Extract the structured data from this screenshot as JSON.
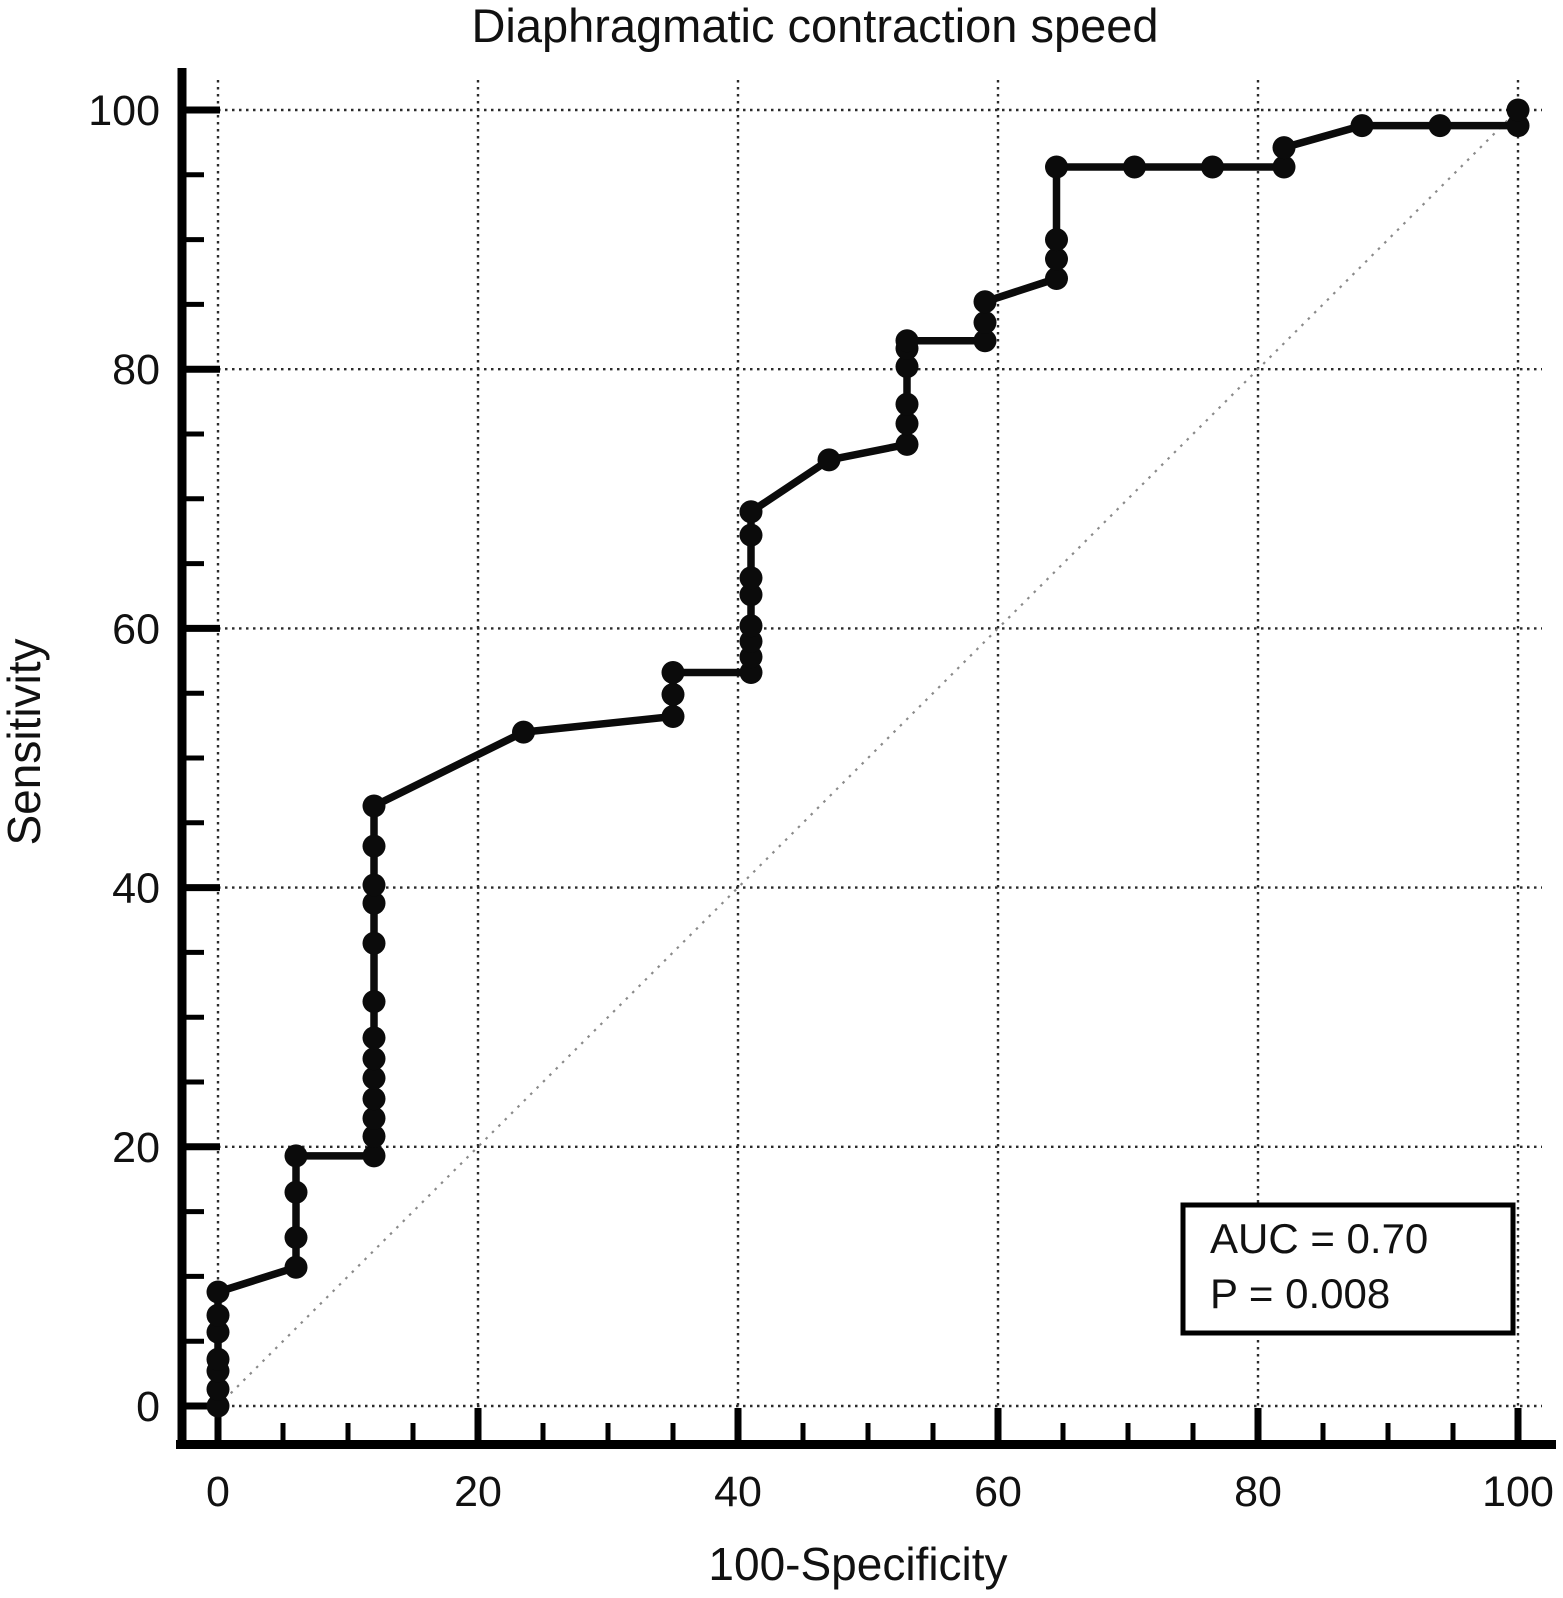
{
  "page": {
    "background": "#ffffff"
  },
  "chart_data": {
    "type": "line",
    "variant": "roc-curve",
    "title": "Diaphragmatic contraction speed",
    "xlabel": "100-Specificity",
    "ylabel": "Sensitivity",
    "xlim": [
      0,
      100
    ],
    "ylim": [
      0,
      100
    ],
    "x_major_ticks": [
      0,
      20,
      40,
      60,
      80,
      100
    ],
    "y_major_ticks": [
      0,
      20,
      40,
      60,
      80,
      100
    ],
    "minor_tick_step": 5,
    "grid": "dotted at major ticks",
    "legend": "none",
    "annotation": {
      "line1": "AUC = 0.70",
      "line2": "P = 0.008"
    },
    "reference_line": {
      "from": [
        0,
        0
      ],
      "to": [
        100,
        100
      ],
      "style": "dotted-gray-diagonal"
    },
    "series": [
      {
        "name": "ROC curve",
        "marker": "filled-circle",
        "points": [
          [
            0,
            0
          ],
          [
            0,
            1.3
          ],
          [
            0,
            2.7
          ],
          [
            0,
            3.6
          ],
          [
            0,
            5.7
          ],
          [
            0,
            7
          ],
          [
            0,
            8.8
          ],
          [
            6,
            10.7
          ],
          [
            6,
            13
          ],
          [
            6,
            16.5
          ],
          [
            6,
            19.3
          ],
          [
            12,
            19.3
          ],
          [
            12,
            20.8
          ],
          [
            12,
            22.2
          ],
          [
            12,
            23.7
          ],
          [
            12,
            25.3
          ],
          [
            12,
            26.8
          ],
          [
            12,
            28.4
          ],
          [
            12,
            31.2
          ],
          [
            12,
            35.7
          ],
          [
            12,
            38.8
          ],
          [
            12,
            40.2
          ],
          [
            12,
            43.2
          ],
          [
            12,
            46.3
          ],
          [
            23.5,
            52
          ],
          [
            35,
            53.2
          ],
          [
            35,
            54.9
          ],
          [
            35,
            56.6
          ],
          [
            41,
            56.6
          ],
          [
            41,
            57.8
          ],
          [
            41,
            59
          ],
          [
            41,
            60.2
          ],
          [
            41,
            62.6
          ],
          [
            41,
            63.9
          ],
          [
            41,
            67.2
          ],
          [
            41,
            69
          ],
          [
            47,
            73
          ],
          [
            53,
            74.2
          ],
          [
            53,
            75.8
          ],
          [
            53,
            77.3
          ],
          [
            53,
            80.2
          ],
          [
            53,
            81.6
          ],
          [
            53,
            82.2
          ],
          [
            59,
            82.2
          ],
          [
            59,
            83.6
          ],
          [
            59,
            85.2
          ],
          [
            64.5,
            87
          ],
          [
            64.5,
            88.5
          ],
          [
            64.5,
            90
          ],
          [
            64.5,
            95.6
          ],
          [
            70.5,
            95.6
          ],
          [
            76.5,
            95.6
          ],
          [
            82,
            95.6
          ],
          [
            82,
            97.1
          ],
          [
            88,
            98.8
          ],
          [
            94,
            98.8
          ],
          [
            100,
            98.8
          ],
          [
            100,
            100
          ]
        ]
      }
    ],
    "colors": {
      "curve": "#0b0b0b",
      "grid": "#2b2b2b",
      "reference": "#8a8a8a",
      "text": "#111111",
      "background": "#ffffff"
    }
  }
}
